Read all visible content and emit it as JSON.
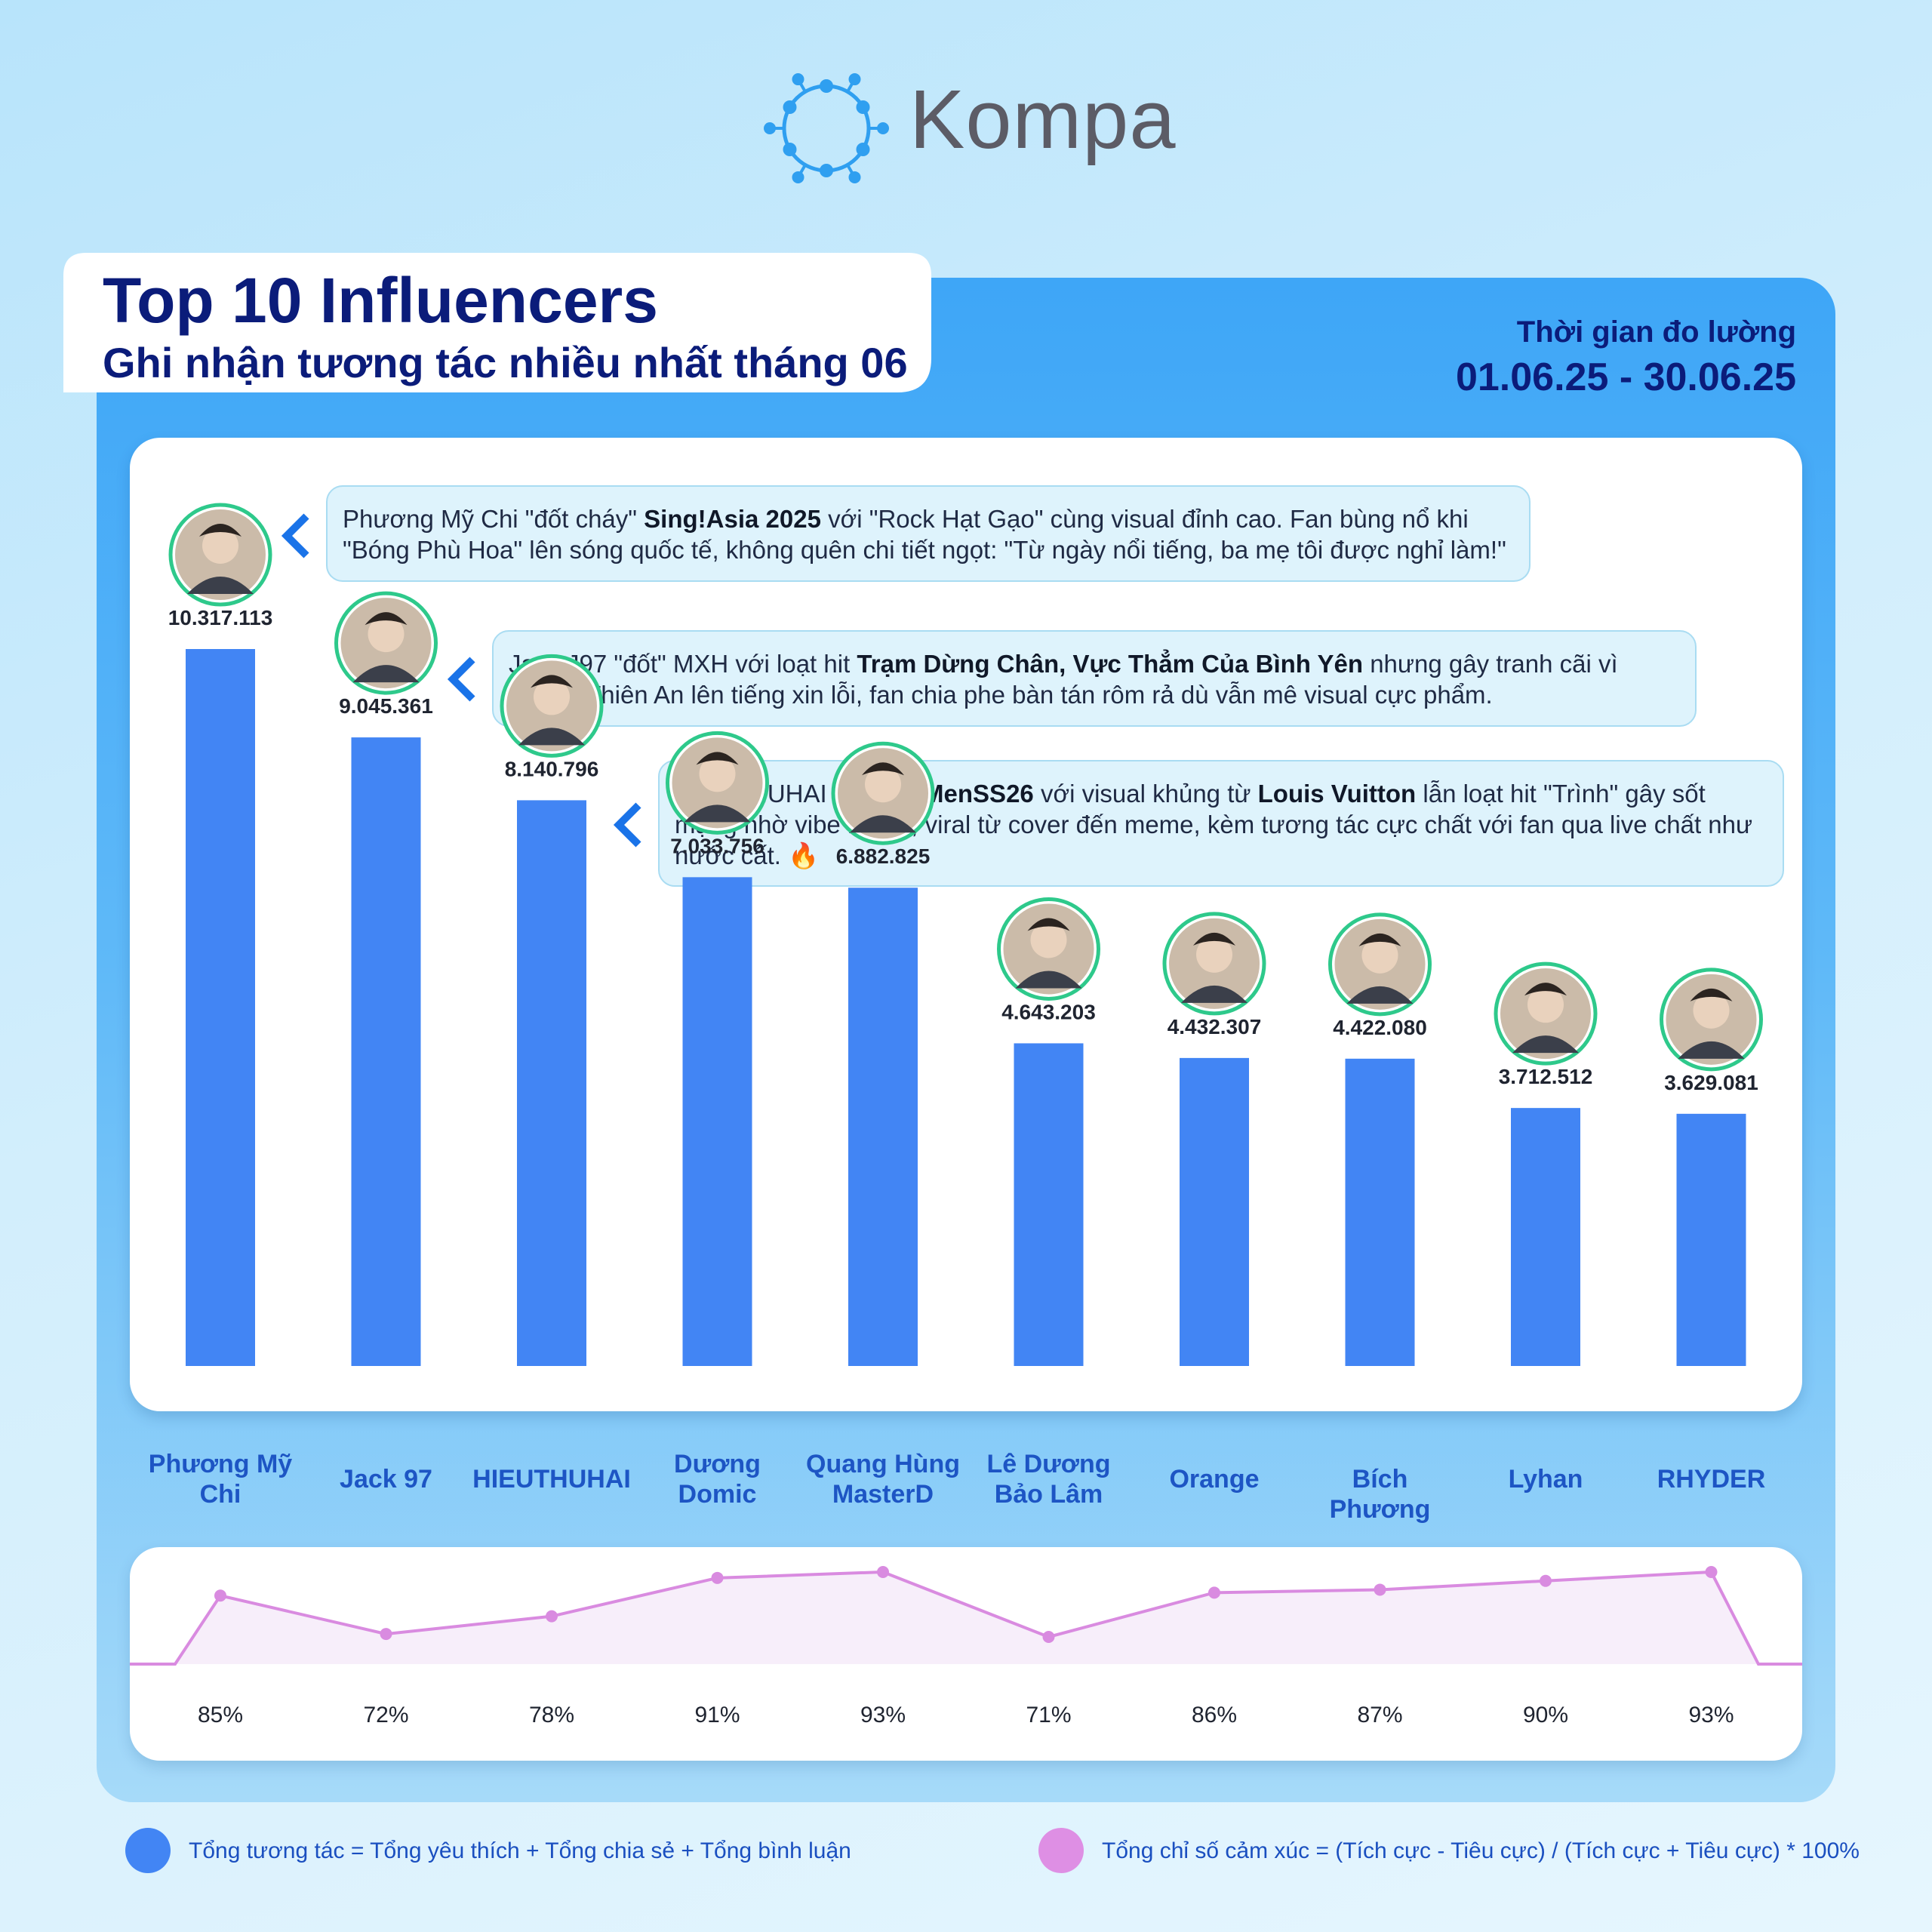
{
  "brand": {
    "name": "Kompa"
  },
  "header": {
    "title": "Top 10 Influencers",
    "subtitle": "Ghi nhận tương tác nhiều nhất tháng 06",
    "period_label": "Thời gian đo lường",
    "period_range": "01.06.25 - 30.06.25"
  },
  "colors": {
    "bar": "#4285f4",
    "line": "#d98be0",
    "accent_navy": "#0b1c7a",
    "name_blue": "#1d55c4",
    "avatar_ring": "#2ec98b"
  },
  "callouts": [
    {
      "parts": [
        {
          "t": "Phương Mỹ Chi \"đốt cháy\" "
        },
        {
          "t": "Sing!Asia 2025",
          "b": true
        },
        {
          "t": " với \"Rock Hạt Gạo\" cùng visual đỉnh cao. Fan bùng nổ khi \"Bóng Phù Hoa\" lên sóng quốc tế, không quên chi tiết ngọt: \"Từ ngày nổi tiếng, ba mẹ tôi được nghỉ làm!\""
        }
      ]
    },
    {
      "parts": [
        {
          "t": "Jack J97 \"đốt\" MXH với loạt hit "
        },
        {
          "t": "Trạm Dừng Chân, Vực Thẳm Của Bình Yên",
          "b": true
        },
        {
          "t": " nhưng gây tranh cãi vì drama Thiên An lên tiếng xin lỗi, fan chia phe bàn tán rôm rả dù vẫn mê visual cực phẩm."
        }
      ]
    },
    {
      "parts": [
        {
          "t": "HIEUTHUHAI \"đốt\" "
        },
        {
          "t": "LVMenSS26",
          "b": true
        },
        {
          "t": " với visual khủng từ "
        },
        {
          "t": "Louis Vuitton",
          "b": true
        },
        {
          "t": " lẫn loạt hit \"Trình\" gây sốt mạng nhờ vibe lầy lội, viral từ cover đến meme, kèm tương tác cực chất với fan qua live chất như nước cất. 🔥"
        }
      ]
    }
  ],
  "chart_data": [
    {
      "type": "bar",
      "categories": [
        "Phương Mỹ Chi",
        "Jack 97",
        "HIEUTHUHAI",
        "Dương Domic",
        "Quang Hùng MasterD",
        "Lê Dương Bảo Lâm",
        "Orange",
        "Bích Phương",
        "Lyhan",
        "RHYDER"
      ],
      "values": [
        10317113,
        9045361,
        8140796,
        7033756,
        6882825,
        4643203,
        4432307,
        4422080,
        3712512,
        3629081
      ],
      "value_labels": [
        "10.317.113",
        "9.045.361",
        "8.140.796",
        "7.033.756",
        "6.882.825",
        "4.643.203",
        "4.432.307",
        "4.422.080",
        "3.712.512",
        "3.629.081"
      ],
      "series_name": "Tổng tương tác = Tổng yêu thích + Tổng chia sẻ + Tổng bình luận",
      "grid": false
    },
    {
      "type": "line",
      "categories": [
        "Phương Mỹ Chi",
        "Jack 97",
        "HIEUTHUHAI",
        "Dương Domic",
        "Quang Hùng MasterD",
        "Lê Dương Bảo Lâm",
        "Orange",
        "Bích Phương",
        "Lyhan",
        "RHYDER"
      ],
      "values": [
        85,
        72,
        78,
        91,
        93,
        71,
        86,
        87,
        90,
        93
      ],
      "value_labels": [
        "85%",
        "72%",
        "78%",
        "91%",
        "93%",
        "71%",
        "86%",
        "87%",
        "90%",
        "93%"
      ],
      "series_name": "Tổng chỉ số cảm xúc = (Tích cực - Tiêu cực) / (Tích cực + Tiêu cực) * 100%",
      "grid": false
    }
  ],
  "legend": [
    {
      "color": "#4285f4",
      "text": "Tổng tương tác = Tổng yêu thích + Tổng chia sẻ + Tổng bình luận"
    },
    {
      "color": "#de8fe4",
      "text": "Tổng chỉ số cảm xúc = (Tích cực - Tiêu cực) / (Tích cực + Tiêu cực) * 100%"
    }
  ]
}
